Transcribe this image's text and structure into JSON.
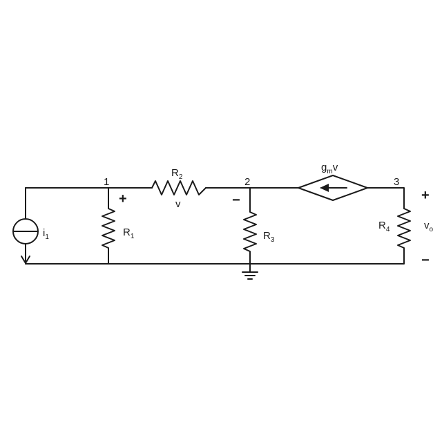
{
  "nodes": {
    "n1": "1",
    "n2": "2",
    "n3": "3"
  },
  "components": {
    "i1": {
      "base": "i",
      "sub": "1"
    },
    "r1": {
      "base": "R",
      "sub": "1"
    },
    "r2": {
      "base": "R",
      "sub": "2"
    },
    "r3": {
      "base": "R",
      "sub": "3"
    },
    "r4": {
      "base": "R",
      "sub": "4"
    },
    "dep_source": {
      "g": "g",
      "sub": "m",
      "v": "v"
    }
  },
  "labels": {
    "v": "v",
    "vo_base": "v",
    "vo_sub": "o",
    "plus": "+",
    "minus": "−"
  },
  "colors": {
    "wire": "#1a1a1a",
    "background": "#ffffff"
  }
}
